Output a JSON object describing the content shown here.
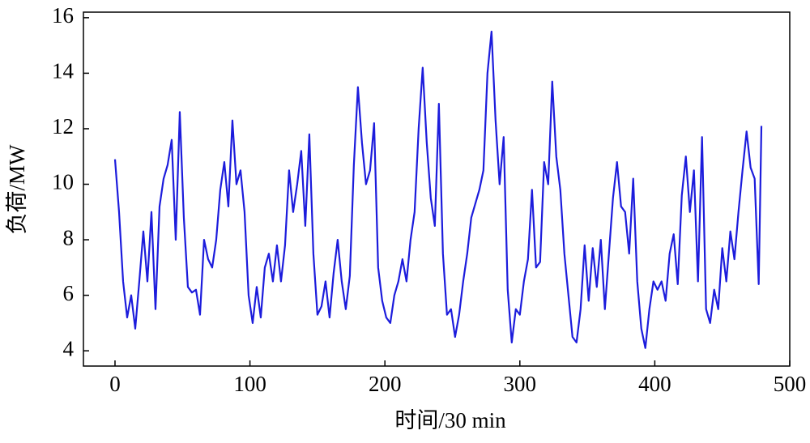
{
  "chart_data": {
    "type": "line",
    "xlabel": "时间/30 min",
    "ylabel": "负荷/MW",
    "color": "#1c1cdc",
    "x": [
      0,
      3,
      6,
      9,
      12,
      15,
      18,
      21,
      24,
      27,
      30,
      33,
      36,
      39,
      42,
      45,
      48,
      51,
      54,
      57,
      60,
      63,
      66,
      69,
      72,
      75,
      78,
      81,
      84,
      87,
      90,
      93,
      96,
      99,
      102,
      105,
      108,
      111,
      114,
      117,
      120,
      123,
      126,
      129,
      132,
      135,
      138,
      141,
      144,
      147,
      150,
      153,
      156,
      159,
      162,
      165,
      168,
      171,
      174,
      177,
      180,
      183,
      186,
      189,
      192,
      195,
      198,
      201,
      204,
      207,
      210,
      213,
      216,
      219,
      222,
      225,
      228,
      231,
      234,
      237,
      240,
      243,
      246,
      249,
      252,
      255,
      258,
      261,
      264,
      267,
      270,
      273,
      276,
      279,
      282,
      285,
      288,
      291,
      294,
      297,
      300,
      303,
      306,
      309,
      312,
      315,
      318,
      321,
      324,
      327,
      330,
      333,
      336,
      339,
      342,
      345,
      348,
      351,
      354,
      357,
      360,
      363,
      366,
      369,
      372,
      375,
      378,
      381,
      384,
      387,
      390,
      393,
      396,
      399,
      402,
      405,
      408,
      411,
      414,
      417,
      420,
      423,
      426,
      429,
      432,
      435,
      438,
      441,
      444,
      447,
      450,
      453,
      456,
      459,
      462,
      465,
      468,
      471,
      474,
      477,
      479
    ],
    "values": [
      10.9,
      9.0,
      6.5,
      5.2,
      6.0,
      4.8,
      6.5,
      8.3,
      6.5,
      9.0,
      5.5,
      9.2,
      10.2,
      10.7,
      11.6,
      8.0,
      12.6,
      8.8,
      6.3,
      6.1,
      6.2,
      5.3,
      8.0,
      7.3,
      7.0,
      8.0,
      9.8,
      10.8,
      9.2,
      12.3,
      10.0,
      10.5,
      9.0,
      6.0,
      5.0,
      6.3,
      5.2,
      7.0,
      7.5,
      6.5,
      7.8,
      6.5,
      7.8,
      10.5,
      9.0,
      10.0,
      11.2,
      8.5,
      11.8,
      7.5,
      5.3,
      5.6,
      6.5,
      5.2,
      6.8,
      8.0,
      6.5,
      5.5,
      6.7,
      10.7,
      13.5,
      11.5,
      10.0,
      10.5,
      12.2,
      7.0,
      5.8,
      5.2,
      5.0,
      6.0,
      6.5,
      7.3,
      6.5,
      8.0,
      9.0,
      12.0,
      14.2,
      11.5,
      9.5,
      8.5,
      12.9,
      7.5,
      5.3,
      5.5,
      4.5,
      5.3,
      6.5,
      7.5,
      8.8,
      9.3,
      9.8,
      10.5,
      14.0,
      15.5,
      12.3,
      10.0,
      11.7,
      6.2,
      4.3,
      5.5,
      5.3,
      6.5,
      7.3,
      9.8,
      7.0,
      7.2,
      10.8,
      10.0,
      13.7,
      11.0,
      9.8,
      7.5,
      6.0,
      4.5,
      4.3,
      5.5,
      7.8,
      5.8,
      7.7,
      6.3,
      8.0,
      5.5,
      7.5,
      9.5,
      10.8,
      9.2,
      9.0,
      7.5,
      10.2,
      6.5,
      4.8,
      4.1,
      5.5,
      6.5,
      6.2,
      6.5,
      5.8,
      7.5,
      8.2,
      6.4,
      9.6,
      11.0,
      9.0,
      10.5,
      6.5,
      11.7,
      5.5,
      5.0,
      6.2,
      5.5,
      7.7,
      6.5,
      8.3,
      7.3,
      9.0,
      10.5,
      11.9,
      10.6,
      10.2,
      6.4,
      12.1
    ],
    "xlim": [
      -23.4,
      500
    ],
    "ylim": [
      3.45,
      16.2
    ],
    "xticks": [
      0,
      100,
      200,
      300,
      400,
      500
    ],
    "yticks": [
      4,
      6,
      8,
      10,
      12,
      14,
      16
    ]
  }
}
